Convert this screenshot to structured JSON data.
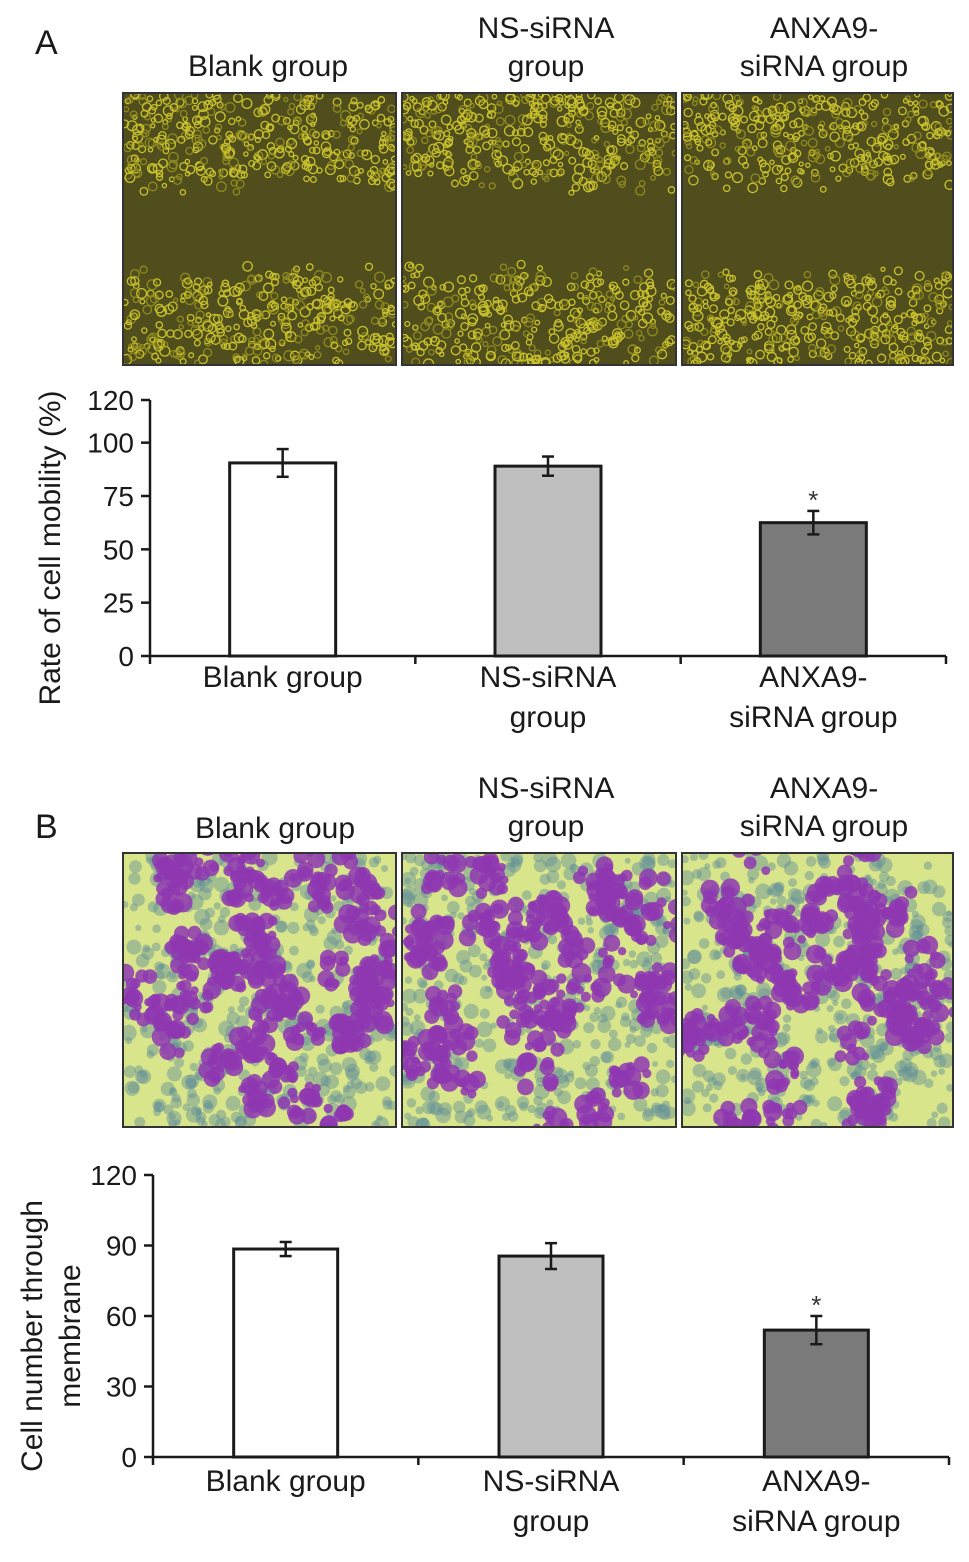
{
  "panels": [
    {
      "label": "A",
      "image_labels": [
        [
          "Blank group"
        ],
        [
          "NS-siRNA",
          "group"
        ],
        [
          "ANXA9-",
          "siRNA group"
        ]
      ],
      "image_style": "wound-healing",
      "colors": {
        "background": "#4f4e1c",
        "cells": "#c9c12d",
        "cells_alt": "#8f8a1f"
      }
    },
    {
      "label": "B",
      "image_labels": [
        [
          "Blank group"
        ],
        [
          "NS-siRNA",
          "group"
        ],
        [
          "ANXA9-",
          "siRNA group"
        ]
      ],
      "image_style": "transwell",
      "colors": {
        "background": "#d9e58a",
        "cells": "#8e37b2",
        "cells_alt": "#5f8f9a"
      }
    }
  ],
  "chart_data": [
    {
      "type": "bar",
      "categories": [
        [
          "Blank group"
        ],
        [
          "NS-siRNA",
          "group"
        ],
        [
          "ANXA9-",
          "siRNA group"
        ]
      ],
      "values": [
        90.5,
        89,
        62.5
      ],
      "errors": [
        6.5,
        4.5,
        5.5
      ],
      "significance": [
        "",
        "",
        "*"
      ],
      "bar_colors": [
        "#ffffff",
        "#bfbfbf",
        "#7a7a7a"
      ],
      "ylabel": [
        "Rate of cell mobility (%)"
      ],
      "ylim": [
        0,
        120
      ],
      "yticks": [
        0,
        25,
        50,
        75,
        100,
        120
      ],
      "grid": false
    },
    {
      "type": "bar",
      "categories": [
        [
          "Blank group"
        ],
        [
          "NS-siRNA",
          "group"
        ],
        [
          "ANXA9-",
          "siRNA group"
        ]
      ],
      "values": [
        88.5,
        85.5,
        54
      ],
      "errors": [
        3,
        5.5,
        6
      ],
      "significance": [
        "",
        "",
        "*"
      ],
      "bar_colors": [
        "#ffffff",
        "#bfbfbf",
        "#7a7a7a"
      ],
      "ylabel": [
        "Cell number through",
        "membrane"
      ],
      "ylim": [
        0,
        120
      ],
      "yticks": [
        0,
        30,
        60,
        90,
        120
      ],
      "grid": false
    }
  ]
}
